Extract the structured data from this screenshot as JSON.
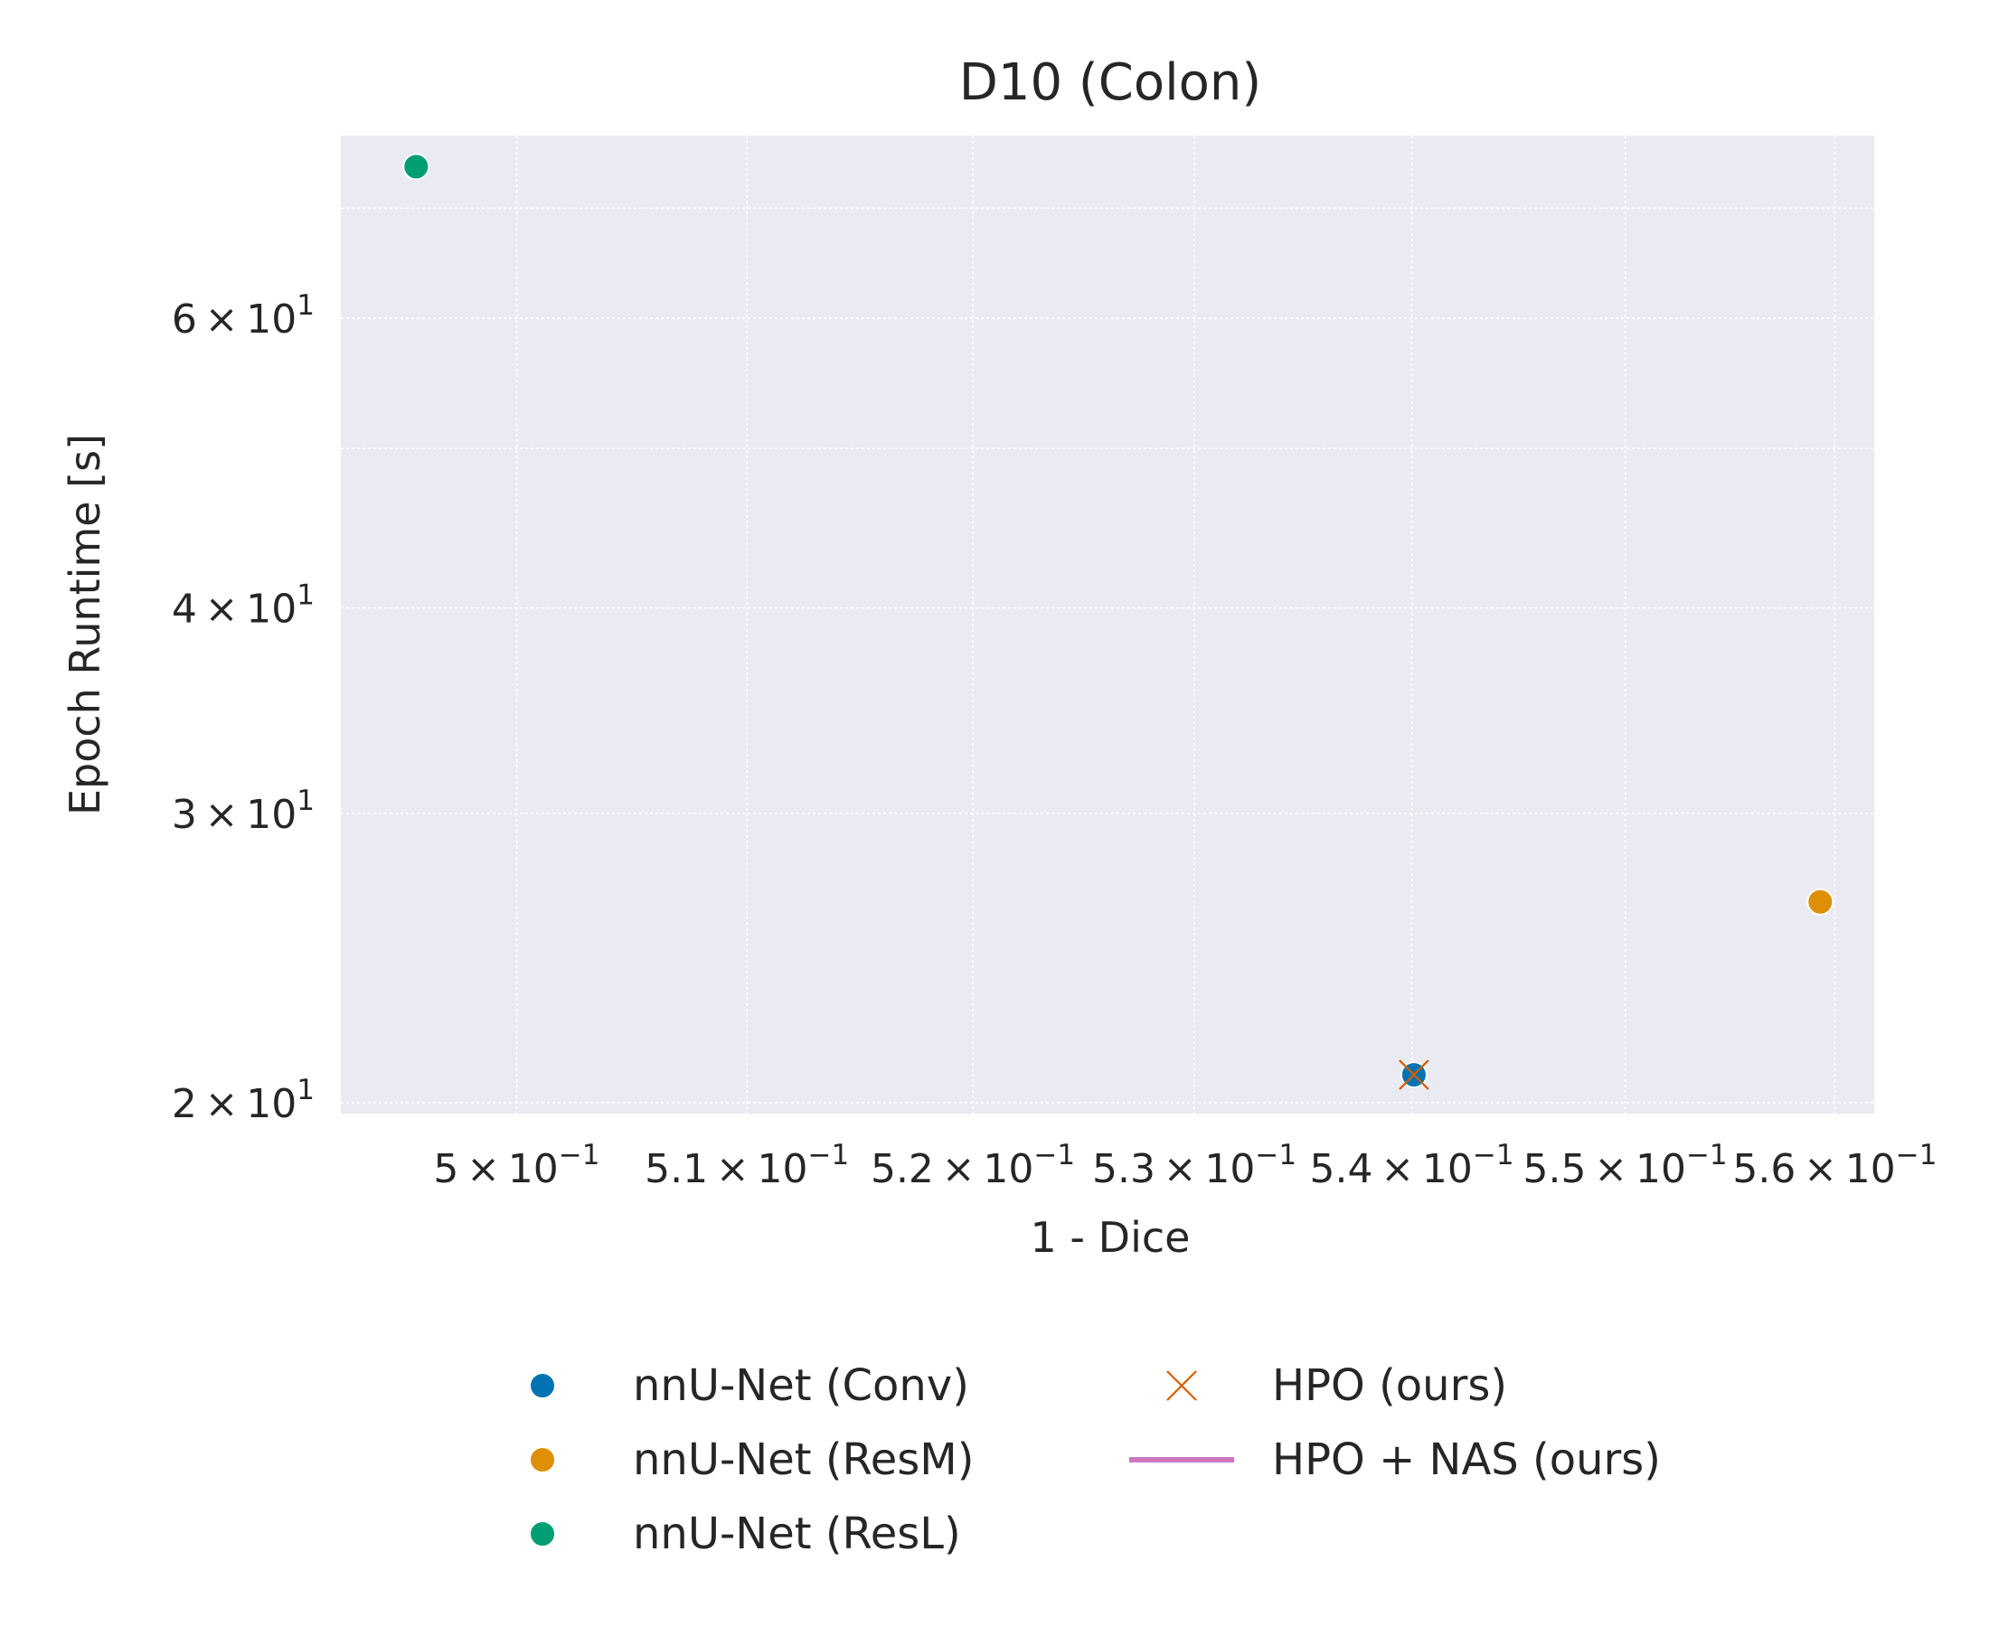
{
  "chart_data": {
    "type": "scatter",
    "title": "D10 (Colon)",
    "xlabel": "1 - Dice",
    "ylabel": "Epoch Runtime [s]",
    "xscale": "log",
    "yscale": "log",
    "xlim": [
      0.4925,
      0.5619
    ],
    "ylim": [
      19.7,
      77.5
    ],
    "grid": true,
    "xticks": [
      {
        "value": 0.5,
        "base": "5",
        "exp": "−1"
      },
      {
        "value": 0.51,
        "base": "5.1",
        "exp": "−1"
      },
      {
        "value": 0.52,
        "base": "5.2",
        "exp": "−1"
      },
      {
        "value": 0.53,
        "base": "5.3",
        "exp": "−1"
      },
      {
        "value": 0.54,
        "base": "5.4",
        "exp": "−1"
      },
      {
        "value": 0.55,
        "base": "5.5",
        "exp": "−1"
      },
      {
        "value": 0.56,
        "base": "5.6",
        "exp": "−1"
      }
    ],
    "yticks": [
      {
        "value": 20,
        "base": "2",
        "exp": "1"
      },
      {
        "value": 30,
        "base": "3",
        "exp": "1"
      },
      {
        "value": 40,
        "base": "4",
        "exp": "1"
      },
      {
        "value": 60,
        "base": "6",
        "exp": "1"
      }
    ],
    "yminor": [
      50,
      70
    ],
    "series": [
      {
        "name": "nnU-Net (Conv)",
        "marker": "circle",
        "color": "#0173b2",
        "points": [
          {
            "x": 0.5401,
            "y": 20.8
          }
        ]
      },
      {
        "name": "nnU-Net (ResM)",
        "marker": "circle",
        "color": "#de8f05",
        "points": [
          {
            "x": 0.5593,
            "y": 26.5
          }
        ]
      },
      {
        "name": "nnU-Net (ResL)",
        "marker": "circle",
        "color": "#029e73",
        "points": [
          {
            "x": 0.4957,
            "y": 74.2
          }
        ]
      },
      {
        "name": "HPO (ours)",
        "marker": "x",
        "color": "#d55e00",
        "points": [
          {
            "x": 0.5401,
            "y": 20.8
          }
        ]
      },
      {
        "name": "HPO + NAS (ours)",
        "marker": "line",
        "color": "#cc78bc",
        "points": []
      }
    ],
    "legend": {
      "placement": "bottom-center",
      "columns": [
        [
          "nnU-Net (Conv)",
          "nnU-Net (ResM)",
          "nnU-Net (ResL)"
        ],
        [
          "HPO (ours)",
          "HPO + NAS (ours)"
        ]
      ]
    },
    "colors": {
      "plot_background": "#eaeaf2",
      "grid": "#ffffff",
      "text": "#262626"
    }
  }
}
